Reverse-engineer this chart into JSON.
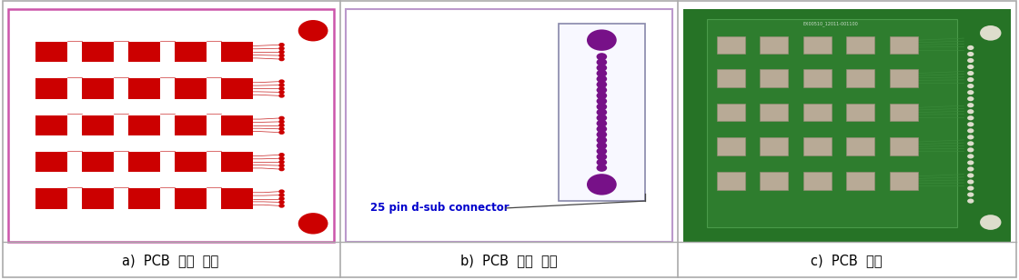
{
  "fig_width": 11.2,
  "fig_height": 3.08,
  "dpi": 100,
  "bg_color": "#ffffff",
  "border_color": "#aaaaaa",
  "panel_labels": [
    "a)  PCB  설계  전면",
    "b)  PCB  설계  후면",
    "c)  PCB  제작"
  ],
  "caption_fontsize": 10.5,
  "panel_bg_a": "#ffffff",
  "panel_bg_b": "#ffffff",
  "panel_border_a": "#cc55aa",
  "panel_border_b": "#bb99cc",
  "red_color": "#cc0000",
  "red_trace": "#cc3333",
  "purple_color": "#771188",
  "purple_dark": "#660077",
  "connector_label": "25 pin d-sub connector",
  "connector_label_color": "#0000cc",
  "connector_label_fontsize": 8.5,
  "green_dark": "#1a5c1a",
  "green_mid": "#267326",
  "green_light": "#2e7d2e",
  "silver": "#b8aa96",
  "silver_dark": "#9a8c78"
}
